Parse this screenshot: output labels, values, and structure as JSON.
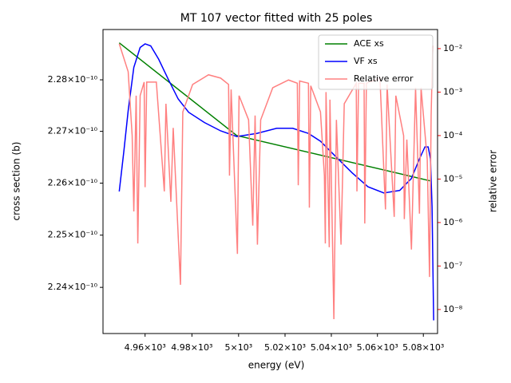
{
  "chart_data": {
    "type": "line",
    "title": "MT 107 vector fitted with 25 poles",
    "xlabel": "energy (eV)",
    "ylabel": "cross section (b)",
    "y2label": "relative error",
    "xlog": true,
    "ylog": true,
    "y2log": true,
    "ylabel_color": "#0000ff",
    "y2label_color": "#ff0000",
    "legend": "upper right",
    "xlim": [
      4942.1,
      5086.2
    ],
    "xticks": [
      {
        "value": 4960,
        "label": "4.96×10³"
      },
      {
        "value": 4980,
        "label": "4.98×10³"
      },
      {
        "value": 5000,
        "label": "5×10³"
      },
      {
        "value": 5020,
        "label": "5.02×10³"
      },
      {
        "value": 5040,
        "label": "5.04×10³"
      },
      {
        "value": 5060,
        "label": "5.06×10³"
      },
      {
        "value": 5080,
        "label": "5.08×10³"
      }
    ],
    "ylim": [
      2.2312e-10,
      2.2898e-10
    ],
    "yticks": [
      {
        "value": 2.24e-10,
        "label": "2.24×10⁻¹⁰"
      },
      {
        "value": 2.25e-10,
        "label": "2.25×10⁻¹⁰"
      },
      {
        "value": 2.26e-10,
        "label": "2.26×10⁻¹⁰"
      },
      {
        "value": 2.27e-10,
        "label": "2.27×10⁻¹⁰"
      },
      {
        "value": 2.28e-10,
        "label": "2.28×10⁻¹⁰"
      }
    ],
    "y2lim": [
      2.8e-09,
      0.0275
    ],
    "y2ticks": [
      {
        "value": 1e-08,
        "label": "10⁻⁸"
      },
      {
        "value": 1e-07,
        "label": "10⁻⁷"
      },
      {
        "value": 1e-06,
        "label": "10⁻⁶"
      },
      {
        "value": 1e-05,
        "label": "10⁻⁵"
      },
      {
        "value": 0.0001,
        "label": "10⁻⁴"
      },
      {
        "value": 0.001,
        "label": "10⁻³"
      },
      {
        "value": 0.01,
        "label": "10⁻²"
      }
    ],
    "series": [
      {
        "name": "ACE xs",
        "color": "#008000",
        "x": [
          4949.0,
          4999.2,
          5083.4
        ],
        "values": [
          2.2872e-10,
          2.2692e-10,
          2.2604e-10
        ]
      },
      {
        "name": "VF xs",
        "color": "#0000ff",
        "x": [
          4949.0,
          4951.0,
          4952.8,
          4955.2,
          4957.9,
          4960.0,
          4962.4,
          4965.8,
          4969.9,
          4974.1,
          4978.6,
          4985.4,
          4992.3,
          4999.2,
          5007.8,
          5016.4,
          5023.3,
          5030.1,
          5035.3,
          5042.2,
          5049.0,
          5055.9,
          5062.8,
          5069.7,
          5074.8,
          5078.3,
          5080.7,
          5082.1,
          5083.1,
          5083.8,
          5084.5
        ],
        "values": [
          2.2584e-10,
          2.2663e-10,
          2.274e-10,
          2.2824e-10,
          2.2863e-10,
          2.287e-10,
          2.2866e-10,
          2.284e-10,
          2.2801e-10,
          2.2763e-10,
          2.2737e-10,
          2.2717e-10,
          2.2701e-10,
          2.269e-10,
          2.2696e-10,
          2.2706e-10,
          2.2706e-10,
          2.2696e-10,
          2.2681e-10,
          2.265e-10,
          2.262e-10,
          2.2593e-10,
          2.2581e-10,
          2.2586e-10,
          2.2609e-10,
          2.2647e-10,
          2.267e-10,
          2.267e-10,
          2.2647e-10,
          2.2555e-10,
          2.2337e-10
        ]
      },
      {
        "name": "Relative error",
        "color": "#ff8080",
        "axis": "y2",
        "x": [
          4949.0,
          4952.8,
          4954.5,
          4955.2,
          4956.2,
          4956.9,
          4957.9,
          4959.6,
          4960.0,
          4960.7,
          4964.8,
          4968.2,
          4968.9,
          4971.0,
          4972.0,
          4975.1,
          4976.1,
          4980.3,
          4987.1,
          4992.3,
          4995.7,
          4996.1,
          4996.8,
          4999.5,
          5000.2,
          5004.3,
          5006.1,
          5007.1,
          5008.1,
          5009.5,
          5014.7,
          5021.5,
          5025.3,
          5025.7,
          5026.3,
          5030.1,
          5030.5,
          5031.1,
          5035.3,
          5037.0,
          5037.4,
          5037.7,
          5039.1,
          5039.4,
          5041.1,
          5042.2,
          5044.2,
          5045.6,
          5050.8,
          5051.1,
          5051.8,
          5054.2,
          5054.5,
          5055.2,
          5061.1,
          5063.5,
          5064.2,
          5067.3,
          5068.0,
          5071.4,
          5071.7,
          5072.8,
          5074.8,
          5076.6,
          5078.3,
          5079.0,
          5081.7,
          5082.7,
          5083.4,
          5084.1
        ],
        "values": [
          0.0129,
          0.00295,
          0.0001,
          1.8e-06,
          0.00083,
          3.3e-07,
          0.00083,
          0.0017,
          6.5e-06,
          0.0017,
          0.0017,
          5.2e-06,
          0.00054,
          3e-06,
          0.00015,
          3.7e-08,
          0.00035,
          0.0015,
          0.0025,
          0.0021,
          0.0015,
          1.2e-05,
          0.00115,
          1.9e-07,
          0.00083,
          0.00023,
          8.5e-07,
          0.00029,
          3.1e-07,
          0.00023,
          0.00126,
          0.0019,
          0.0016,
          7.2e-06,
          0.0018,
          0.0016,
          2.2e-06,
          0.0014,
          0.00035,
          1.2e-05,
          3.3e-07,
          0.001,
          2.7e-07,
          0.00067,
          6e-09,
          0.00023,
          3.1e-07,
          0.00054,
          0.0016,
          5.2e-06,
          0.0016,
          0.0016,
          9.5e-07,
          0.0016,
          0.0021,
          2e-06,
          0.0015,
          1.35e-06,
          0.00083,
          0.0001,
          1.2e-06,
          8.1e-05,
          2.4e-07,
          0.00126,
          1.6e-06,
          0.00126,
          2.8e-05,
          5.6e-08,
          0.00029,
          0.0117
        ]
      }
    ]
  }
}
